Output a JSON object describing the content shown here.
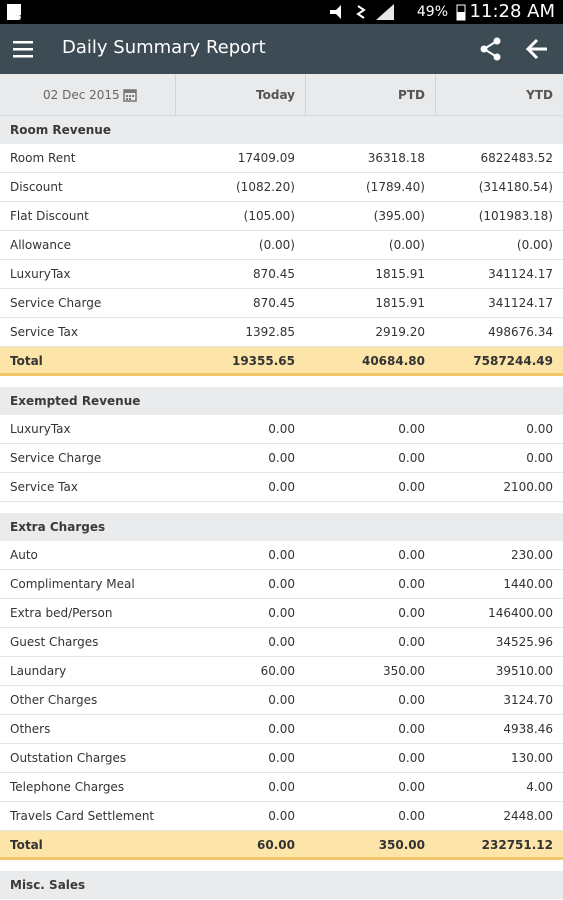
{
  "status_bar": {
    "battery": "49%",
    "time": "11:28 AM"
  },
  "app_bar": {
    "title": "Daily Summary Report"
  },
  "table": {
    "date": "02 Dec 2015",
    "columns": [
      "Today",
      "PTD",
      "YTD"
    ],
    "sections": [
      {
        "title": "Room Revenue",
        "rows": [
          {
            "label": "Room Rent",
            "values": [
              "17409.09",
              "36318.18",
              "6822483.52"
            ]
          },
          {
            "label": "Discount",
            "values": [
              "(1082.20)",
              "(1789.40)",
              "(314180.54)"
            ]
          },
          {
            "label": "Flat Discount",
            "values": [
              "(105.00)",
              "(395.00)",
              "(101983.18)"
            ]
          },
          {
            "label": "Allowance",
            "values": [
              "(0.00)",
              "(0.00)",
              "(0.00)"
            ]
          },
          {
            "label": "LuxuryTax",
            "values": [
              "870.45",
              "1815.91",
              "341124.17"
            ]
          },
          {
            "label": "Service Charge",
            "values": [
              "870.45",
              "1815.91",
              "341124.17"
            ]
          },
          {
            "label": "Service Tax",
            "values": [
              "1392.85",
              "2919.20",
              "498676.34"
            ]
          }
        ],
        "total": {
          "label": "Total",
          "values": [
            "19355.65",
            "40684.80",
            "7587244.49"
          ]
        }
      },
      {
        "title": "Exempted Revenue",
        "rows": [
          {
            "label": "LuxuryTax",
            "values": [
              "0.00",
              "0.00",
              "0.00"
            ]
          },
          {
            "label": "Service Charge",
            "values": [
              "0.00",
              "0.00",
              "0.00"
            ]
          },
          {
            "label": "Service Tax",
            "values": [
              "0.00",
              "0.00",
              "2100.00"
            ]
          }
        ]
      },
      {
        "title": "Extra Charges",
        "rows": [
          {
            "label": "Auto",
            "values": [
              "0.00",
              "0.00",
              "230.00"
            ]
          },
          {
            "label": "Complimentary Meal",
            "values": [
              "0.00",
              "0.00",
              "1440.00"
            ]
          },
          {
            "label": "Extra bed/Person",
            "values": [
              "0.00",
              "0.00",
              "146400.00"
            ]
          },
          {
            "label": "Guest Charges",
            "values": [
              "0.00",
              "0.00",
              "34525.96"
            ]
          },
          {
            "label": "Laundary",
            "values": [
              "60.00",
              "350.00",
              "39510.00"
            ]
          },
          {
            "label": "Other Charges",
            "values": [
              "0.00",
              "0.00",
              "3124.70"
            ]
          },
          {
            "label": "Others",
            "values": [
              "0.00",
              "0.00",
              "4938.46"
            ]
          },
          {
            "label": "Outstation Charges",
            "values": [
              "0.00",
              "0.00",
              "130.00"
            ]
          },
          {
            "label": "Telephone Charges",
            "values": [
              "0.00",
              "0.00",
              "4.00"
            ]
          },
          {
            "label": "Travels Card Settlement",
            "values": [
              "0.00",
              "0.00",
              "2448.00"
            ]
          }
        ],
        "total": {
          "label": "Total",
          "values": [
            "60.00",
            "350.00",
            "232751.12"
          ]
        }
      },
      {
        "title": "Misc. Sales",
        "rows": []
      }
    ]
  }
}
